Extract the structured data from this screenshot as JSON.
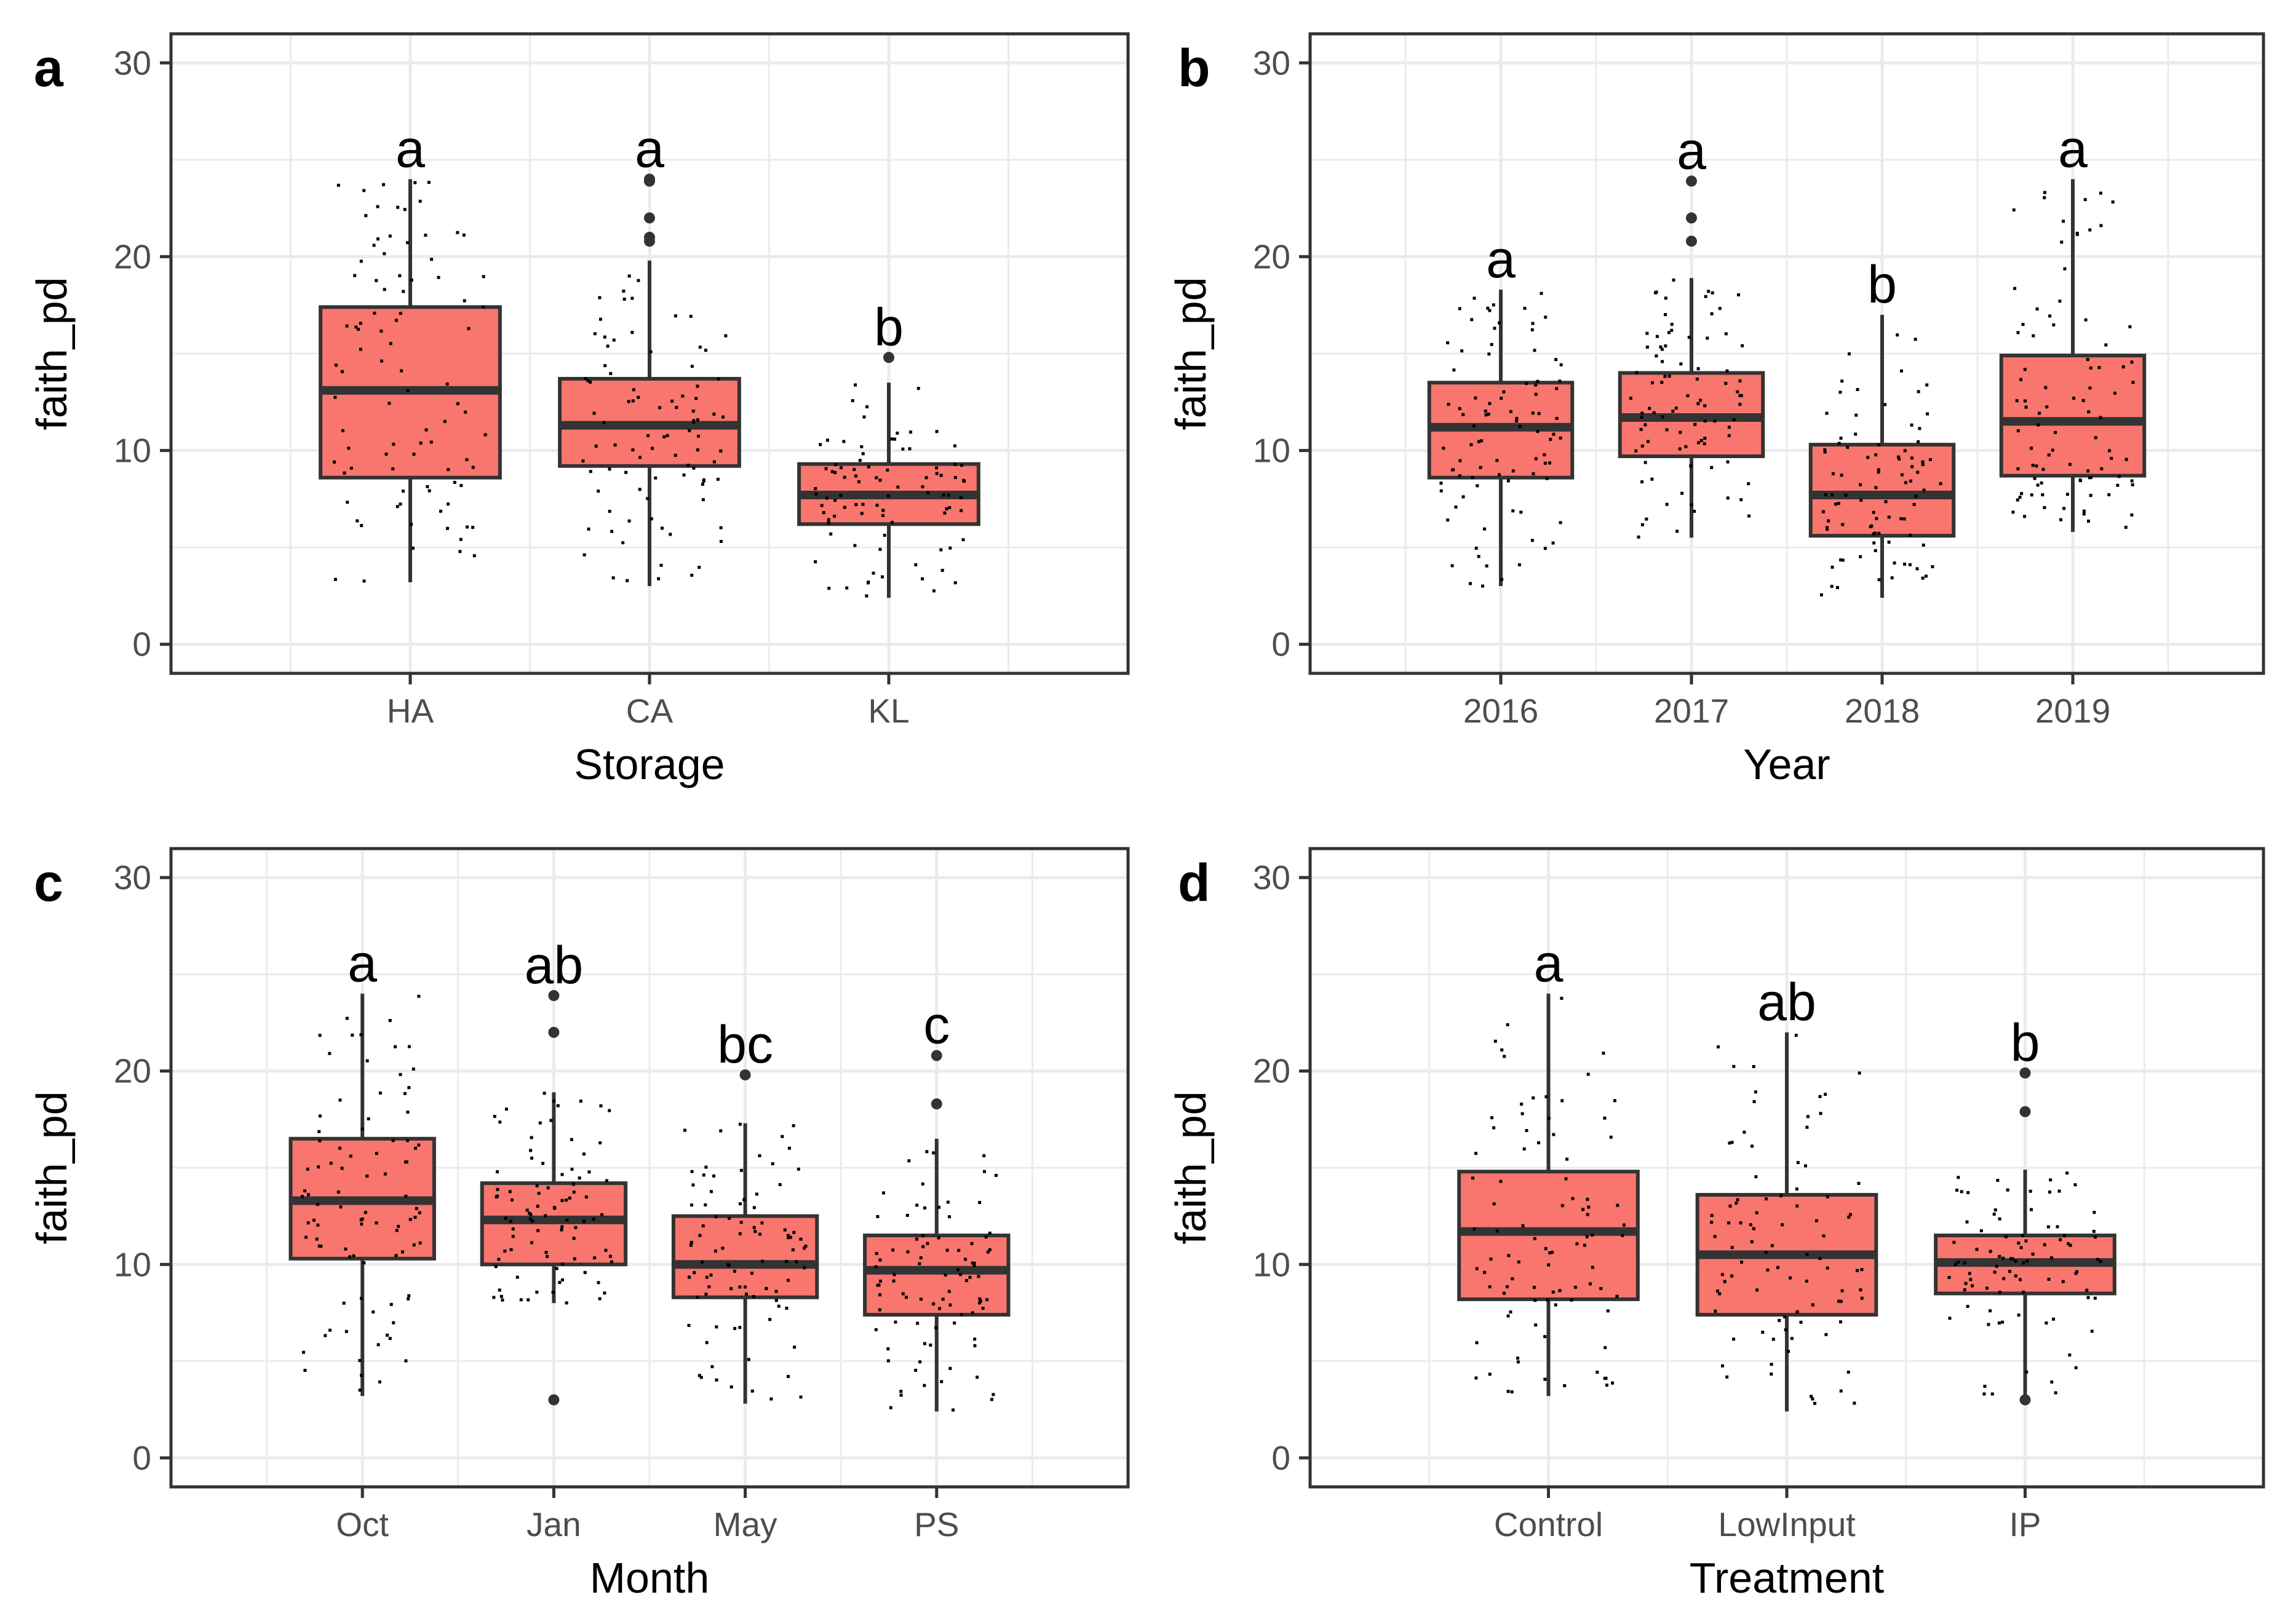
{
  "figure": {
    "background": "#ffffff"
  },
  "style": {
    "box_fill": "#f8766d",
    "box_stroke": "#333333",
    "grid_color": "#ebebeb",
    "point_color": "#000000",
    "outlier_color": "#333333"
  },
  "chart_data": [
    {
      "type": "boxplot",
      "panel": "a",
      "xlabel": "Storage",
      "ylabel": "faith_pd",
      "ylim": [
        -1.5,
        31.5
      ],
      "yticks": [
        "0",
        "10",
        "20",
        "30"
      ],
      "categories": [
        "HA",
        "CA",
        "KL"
      ],
      "boxes": [
        {
          "category": "HA",
          "whisker_low": 3.2,
          "q1": 8.6,
          "median": 13.1,
          "q3": 17.4,
          "whisker_high": 24.0,
          "outliers": [],
          "letter": "a"
        },
        {
          "category": "CA",
          "whisker_low": 3.0,
          "q1": 9.2,
          "median": 11.3,
          "q3": 13.7,
          "whisker_high": 19.8,
          "outliers": [
            20.8,
            21.0,
            22.0,
            23.9,
            24.0
          ],
          "letter": "a"
        },
        {
          "category": "KL",
          "whisker_low": 2.4,
          "q1": 6.2,
          "median": 7.7,
          "q3": 9.3,
          "whisker_high": 13.5,
          "outliers": [
            14.8
          ],
          "letter": "b"
        }
      ]
    },
    {
      "type": "boxplot",
      "panel": "b",
      "xlabel": "Year",
      "ylabel": "faith_pd",
      "ylim": [
        -1.5,
        31.5
      ],
      "yticks": [
        "0",
        "10",
        "20",
        "30"
      ],
      "categories": [
        "2016",
        "2017",
        "2018",
        "2019"
      ],
      "boxes": [
        {
          "category": "2016",
          "whisker_low": 3.0,
          "q1": 8.6,
          "median": 11.2,
          "q3": 13.5,
          "whisker_high": 18.3,
          "outliers": [],
          "letter": "a"
        },
        {
          "category": "2017",
          "whisker_low": 5.5,
          "q1": 9.7,
          "median": 11.7,
          "q3": 14.0,
          "whisker_high": 18.9,
          "outliers": [
            20.8,
            22.0,
            23.9
          ],
          "letter": "a"
        },
        {
          "category": "2018",
          "whisker_low": 2.4,
          "q1": 5.6,
          "median": 7.7,
          "q3": 10.3,
          "whisker_high": 17.0,
          "outliers": [],
          "letter": "b"
        },
        {
          "category": "2019",
          "whisker_low": 5.8,
          "q1": 8.7,
          "median": 11.5,
          "q3": 14.9,
          "whisker_high": 24.0,
          "outliers": [],
          "letter": "a"
        }
      ]
    },
    {
      "type": "boxplot",
      "panel": "c",
      "xlabel": "Month",
      "ylabel": "faith_pd",
      "ylim": [
        -1.5,
        31.5
      ],
      "yticks": [
        "0",
        "10",
        "20",
        "30"
      ],
      "categories": [
        "Oct",
        "Jan",
        "May",
        "PS"
      ],
      "boxes": [
        {
          "category": "Oct",
          "whisker_low": 3.2,
          "q1": 10.3,
          "median": 13.3,
          "q3": 16.5,
          "whisker_high": 24.0,
          "outliers": [],
          "letter": "a"
        },
        {
          "category": "Jan",
          "whisker_low": 8.0,
          "q1": 10.0,
          "median": 12.3,
          "q3": 14.2,
          "whisker_high": 18.9,
          "outliers": [
            3.0,
            22.0,
            23.9
          ],
          "letter": "ab"
        },
        {
          "category": "May",
          "whisker_low": 2.8,
          "q1": 8.3,
          "median": 10.0,
          "q3": 12.5,
          "whisker_high": 17.3,
          "outliers": [
            19.8
          ],
          "letter": "bc"
        },
        {
          "category": "PS",
          "whisker_low": 2.4,
          "q1": 7.4,
          "median": 9.7,
          "q3": 11.5,
          "whisker_high": 16.5,
          "outliers": [
            18.3,
            20.8
          ],
          "letter": "c"
        }
      ]
    },
    {
      "type": "boxplot",
      "panel": "d",
      "xlabel": "Treatment",
      "ylabel": "faith_pd",
      "ylim": [
        -1.5,
        31.5
      ],
      "yticks": [
        "0",
        "10",
        "20",
        "30"
      ],
      "categories": [
        "Control",
        "LowInput",
        "IP"
      ],
      "boxes": [
        {
          "category": "Control",
          "whisker_low": 3.2,
          "q1": 8.2,
          "median": 11.7,
          "q3": 14.8,
          "whisker_high": 24.0,
          "outliers": [],
          "letter": "a"
        },
        {
          "category": "LowInput",
          "whisker_low": 2.4,
          "q1": 7.4,
          "median": 10.5,
          "q3": 13.6,
          "whisker_high": 22.0,
          "outliers": [],
          "letter": "ab"
        },
        {
          "category": "IP",
          "whisker_low": 3.2,
          "q1": 8.5,
          "median": 10.1,
          "q3": 11.5,
          "whisker_high": 14.9,
          "outliers": [
            3.0,
            17.9,
            19.9
          ],
          "letter": "b"
        }
      ]
    }
  ]
}
